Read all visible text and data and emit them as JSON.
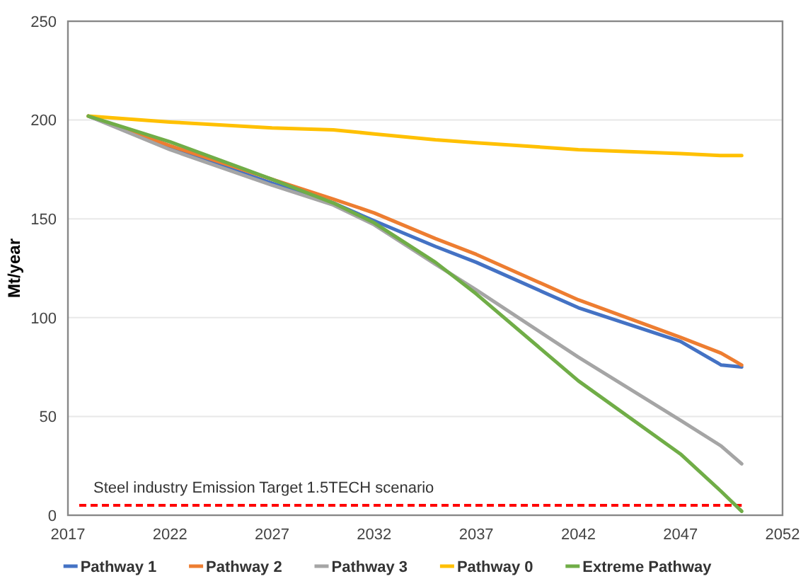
{
  "chart_data": {
    "type": "line",
    "ylabel": "Mt/year",
    "xlim": [
      2017,
      2052
    ],
    "xticks": [
      2017,
      2022,
      2027,
      2032,
      2037,
      2042,
      2047,
      2052
    ],
    "ylim": [
      0,
      250
    ],
    "yticks": [
      0,
      50,
      100,
      150,
      200,
      250
    ],
    "grid": "y",
    "legend": "bottom",
    "marker": "none",
    "line_style": "solid",
    "x": [
      2018,
      2022,
      2027,
      2030,
      2032,
      2035,
      2037,
      2042,
      2047,
      2049,
      2050
    ],
    "series": [
      {
        "name": "Pathway 1",
        "color": "#4472c4",
        "values": [
          202,
          186,
          168,
          158,
          149,
          136,
          128,
          105,
          88,
          76,
          75
        ]
      },
      {
        "name": "Pathway 2",
        "color": "#ed7d31",
        "values": [
          202,
          187,
          170,
          160,
          153,
          140,
          132,
          109,
          90,
          82,
          76
        ]
      },
      {
        "name": "Pathway 3",
        "color": "#a5a5a5",
        "values": [
          202,
          185,
          167,
          157,
          147,
          127,
          114,
          80,
          48,
          35,
          26
        ]
      },
      {
        "name": "Pathway 0",
        "color": "#ffc000",
        "values": [
          202,
          199,
          196,
          195,
          193,
          190,
          188.5,
          185,
          183,
          182,
          182
        ]
      },
      {
        "name": "Extreme Pathway",
        "color": "#70ad47",
        "values": [
          202,
          189,
          170,
          158,
          148,
          128,
          112,
          68,
          31,
          12,
          2
        ]
      }
    ],
    "ref_lines": [
      {
        "axis": "y",
        "value": 5,
        "label": "Steel industry Emission Target 1.5TECH scenario",
        "color": "#ff0000",
        "line_style": "dashed"
      }
    ]
  }
}
